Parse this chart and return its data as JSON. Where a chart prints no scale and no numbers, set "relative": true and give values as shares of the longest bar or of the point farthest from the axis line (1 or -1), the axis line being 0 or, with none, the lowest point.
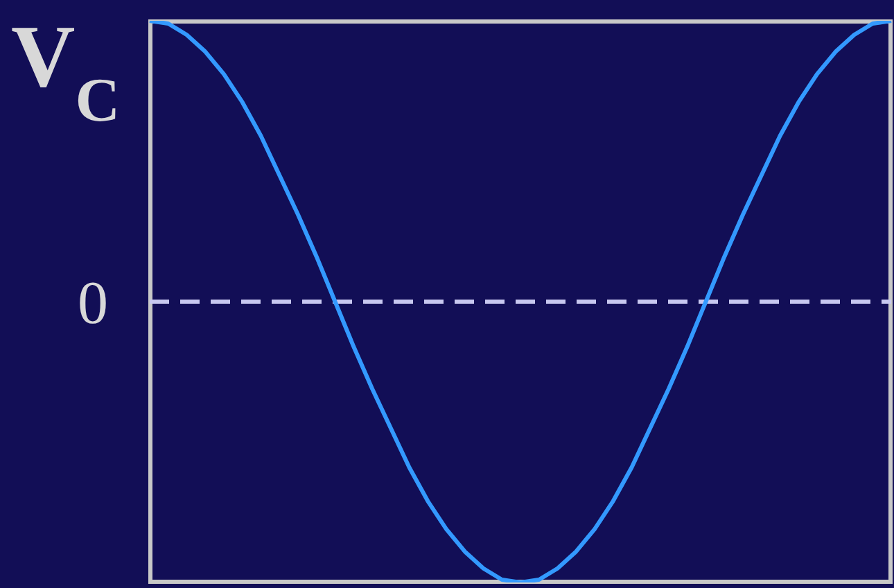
{
  "chart_data": {
    "type": "line",
    "relative": true,
    "ylabel": "V$_{C}$",
    "categories": [
      null,
      null,
      null,
      null,
      null,
      null,
      null,
      null,
      null,
      null,
      null,
      null,
      null,
      null,
      null,
      null,
      null,
      null,
      null,
      null,
      null,
      null,
      null,
      null,
      null,
      null,
      null,
      null,
      null,
      null,
      null,
      null,
      null,
      null,
      null,
      null,
      null,
      null,
      null,
      null,
      null
    ],
    "series": [
      {
        "color": "#3399ff",
        "values": [
          1,
          0.99,
          0.95,
          0.89,
          0.81,
          0.71,
          0.59,
          0.45,
          0.31,
          0.16,
          0,
          -0.16,
          -0.31,
          -0.45,
          -0.59,
          -0.71,
          -0.81,
          -0.89,
          -0.95,
          -0.99,
          -1,
          -0.99,
          -0.95,
          -0.89,
          -0.81,
          -0.71,
          -0.59,
          -0.45,
          -0.31,
          -0.16,
          0,
          0.16,
          0.31,
          0.45,
          0.59,
          0.71,
          0.81,
          0.89,
          0.95,
          0.99,
          1
        ]
      }
    ],
    "ref_lines": [
      {
        "axis": "y",
        "value": 0,
        "label": "0",
        "color": "#c8c8f0",
        "line_style": "dashed"
      }
    ],
    "marker": "none",
    "grid": false,
    "legend": false
  }
}
